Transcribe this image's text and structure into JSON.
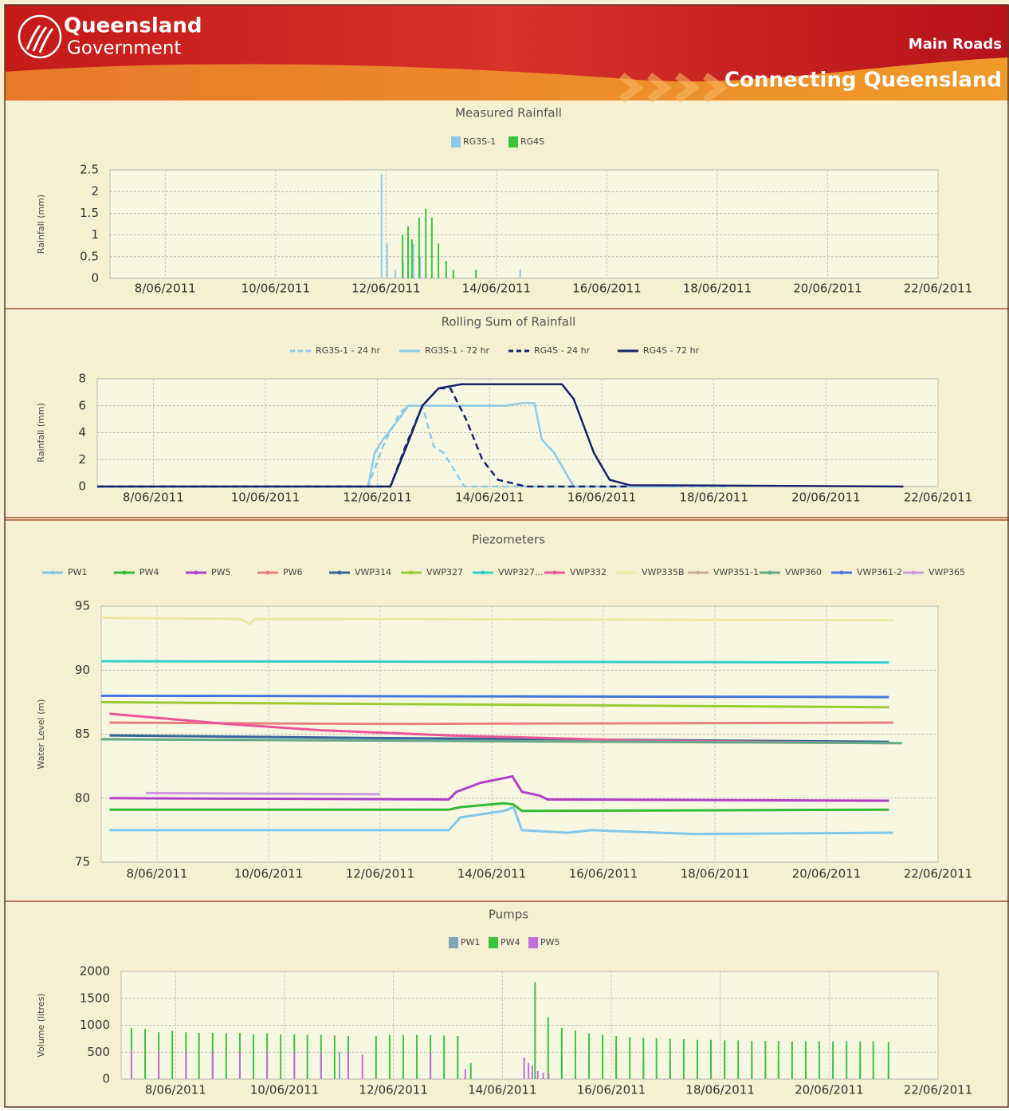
{
  "header": {
    "brand_line1": "Queensland",
    "brand_line2": "Government",
    "department": "Main Roads",
    "slogan": "Connecting Queensland"
  },
  "chart_data": [
    {
      "type": "bar",
      "title": "Measured Rainfall",
      "y_label": "Rainfall (mm)",
      "xlim": [
        7,
        22
      ],
      "xticks": [
        {
          "value": 8,
          "label": "8/06/2011"
        },
        {
          "value": 10,
          "label": "10/06/2011"
        },
        {
          "value": 12,
          "label": "12/06/2011"
        },
        {
          "value": 14,
          "label": "14/06/2011"
        },
        {
          "value": 16,
          "label": "16/06/2011"
        },
        {
          "value": 18,
          "label": "18/06/2011"
        },
        {
          "value": 20,
          "label": "20/06/2011"
        },
        {
          "value": 22,
          "label": "22/06/2011"
        }
      ],
      "ylim": [
        0,
        2.5
      ],
      "yticks": [
        0,
        0.5,
        1,
        1.5,
        2,
        2.5
      ],
      "grid": true,
      "series": [
        {
          "name": "RG3S-1",
          "color": "#8ccbe8",
          "x": [
            11.92,
            12.02,
            12.17,
            12.31,
            12.4,
            12.5,
            12.62,
            14.43
          ],
          "values": [
            2.4,
            0.8,
            0.2,
            0.4,
            0.8,
            0.8,
            0.5,
            0.2
          ]
        },
        {
          "name": "RG4S",
          "color": "#3cc43c",
          "x": [
            12.3,
            12.4,
            12.47,
            12.6,
            12.72,
            12.83,
            12.95,
            13.09,
            13.22,
            13.63
          ],
          "values": [
            1.0,
            1.2,
            0.9,
            1.4,
            1.6,
            1.4,
            0.8,
            0.4,
            0.2,
            0.2
          ]
        }
      ]
    },
    {
      "type": "line",
      "title": "Rolling Sum of Rainfall",
      "y_label": "Rainfall (mm)",
      "xlim": [
        7,
        22
      ],
      "xticks": [
        {
          "value": 8,
          "label": "8/06/2011"
        },
        {
          "value": 10,
          "label": "10/06/2011"
        },
        {
          "value": 12,
          "label": "12/06/2011"
        },
        {
          "value": 14,
          "label": "14/06/2011"
        },
        {
          "value": 16,
          "label": "16/06/2011"
        },
        {
          "value": 18,
          "label": "18/06/2011"
        },
        {
          "value": 20,
          "label": "20/06/2011"
        },
        {
          "value": 22,
          "label": "22/06/2011"
        }
      ],
      "ylim": [
        0,
        8
      ],
      "yticks": [
        0,
        2,
        4,
        6,
        8
      ],
      "grid": true,
      "series": [
        {
          "name": "RG3S-1 - 24 hr",
          "color": "#8ccbe8",
          "dashed": true,
          "x": [
            7,
            11.83,
            12.1,
            12.4,
            12.55,
            12.8,
            13.0,
            13.18,
            13.55,
            18.3
          ],
          "values": [
            0,
            0,
            3,
            5.5,
            6,
            6,
            3,
            2.5,
            0,
            0
          ]
        },
        {
          "name": "RG3S-1 - 72 hr",
          "color": "#8ccbe8",
          "dashed": false,
          "x": [
            7,
            11.83,
            11.95,
            12.1,
            12.38,
            12.55,
            14.3,
            14.58,
            14.8,
            14.93,
            15.15,
            15.5,
            17.35
          ],
          "values": [
            0,
            0,
            2.5,
            3.5,
            5,
            6,
            6,
            6.2,
            6.2,
            3.5,
            2.5,
            0,
            0
          ]
        },
        {
          "name": "RG4S - 24 hr",
          "color": "#17246a",
          "dashed": true,
          "x": [
            7,
            12.23,
            12.5,
            12.8,
            13.09,
            13.3,
            13.58,
            13.87,
            14.15,
            14.65,
            16.5
          ],
          "values": [
            0,
            0,
            3,
            6,
            7.3,
            7.3,
            5,
            2,
            0.5,
            0,
            0
          ]
        },
        {
          "name": "RG4S - 72 hr",
          "color": "#17246a",
          "dashed": false,
          "x": [
            7,
            12.23,
            12.52,
            12.8,
            13.09,
            13.5,
            15.29,
            15.5,
            15.86,
            16.14,
            16.5,
            21.38
          ],
          "values": [
            0,
            0,
            3,
            6,
            7.3,
            7.6,
            7.6,
            6.5,
            2.5,
            0.5,
            0.1,
            0
          ]
        }
      ]
    },
    {
      "type": "line",
      "title": "Piezometers",
      "y_label": "Water Level (m)",
      "xlim": [
        7,
        22
      ],
      "xticks": [
        {
          "value": 8,
          "label": "8/06/2011"
        },
        {
          "value": 10,
          "label": "10/06/2011"
        },
        {
          "value": 12,
          "label": "12/06/2011"
        },
        {
          "value": 14,
          "label": "14/06/2011"
        },
        {
          "value": 16,
          "label": "16/06/2011"
        },
        {
          "value": 18,
          "label": "18/06/2011"
        },
        {
          "value": 20,
          "label": "20/06/2011"
        },
        {
          "value": 22,
          "label": "22/06/2011"
        }
      ],
      "ylim": [
        75,
        95
      ],
      "yticks": [
        75,
        80,
        85,
        90,
        95
      ],
      "grid": true,
      "series": [
        {
          "name": "PW1",
          "color": "#80c8ea",
          "x": [
            7.15,
            13.23,
            13.44,
            14.22,
            14.39,
            14.54,
            15.36,
            15.79,
            17.64,
            21.19
          ],
          "values": [
            77.5,
            77.5,
            78.5,
            79.0,
            79.3,
            77.5,
            77.3,
            77.5,
            77.2,
            77.3
          ]
        },
        {
          "name": "PW4",
          "color": "#33bb33",
          "x": [
            7.15,
            13.23,
            13.44,
            14.22,
            14.39,
            14.54,
            21.12
          ],
          "values": [
            79.1,
            79.1,
            79.3,
            79.6,
            79.5,
            79.0,
            79.1
          ]
        },
        {
          "name": "PW5",
          "color": "#b040c8",
          "x": [
            7.15,
            13.23,
            13.37,
            13.8,
            14.37,
            14.54,
            14.86,
            15.0,
            21.12
          ],
          "values": [
            80.0,
            79.9,
            80.5,
            81.2,
            81.7,
            80.5,
            80.2,
            79.9,
            79.8
          ]
        },
        {
          "name": "PW6",
          "color": "#e88080",
          "x": [
            7.15,
            12,
            21.2
          ],
          "values": [
            85.9,
            85.8,
            85.9
          ]
        },
        {
          "name": "VWP314",
          "color": "#336699",
          "x": [
            7.15,
            11.9,
            21.12
          ],
          "values": [
            84.9,
            84.7,
            84.4
          ]
        },
        {
          "name": "VWP327",
          "color": "#99cc33",
          "x": [
            7.0,
            21.12
          ],
          "values": [
            87.5,
            87.1
          ]
        },
        {
          "name": "VWP327...",
          "color": "#33d0c8",
          "x": [
            7.0,
            21.12
          ],
          "values": [
            90.7,
            90.6
          ]
        },
        {
          "name": "VWP332",
          "color": "#ee5599",
          "x": [
            7.15,
            9.25,
            10.95,
            13.23,
            16.6,
            21.12
          ],
          "values": [
            86.6,
            85.8,
            85.3,
            84.9,
            84.5,
            84.3
          ]
        },
        {
          "name": "VWP335B",
          "color": "#ecec9e",
          "x": [
            7.0,
            9.5,
            9.67,
            9.75,
            21.2
          ],
          "values": [
            94.1,
            94.0,
            93.6,
            94.0,
            93.9
          ]
        },
        {
          "name": "VWP351-1",
          "color": "#ccaa99",
          "x": [
            7.0,
            21.2
          ],
          "values": [
            84.6,
            84.3
          ]
        },
        {
          "name": "VWP360",
          "color": "#66aa88",
          "x": [
            7.0,
            21.35
          ],
          "values": [
            84.6,
            84.3
          ]
        },
        {
          "name": "VWP361-2",
          "color": "#4477dd",
          "x": [
            7.0,
            21.12
          ],
          "values": [
            88.0,
            87.9
          ]
        },
        {
          "name": "VWP365",
          "color": "#cc99dd",
          "x": [
            7.8,
            11.99
          ],
          "values": [
            80.4,
            80.3
          ]
        }
      ]
    },
    {
      "type": "bar",
      "title": "Pumps",
      "y_label": "Volume (litres)",
      "xlim": [
        7,
        22
      ],
      "xticks": [
        {
          "value": 8,
          "label": "8/06/2011"
        },
        {
          "value": 10,
          "label": "10/06/2011"
        },
        {
          "value": 12,
          "label": "12/06/2011"
        },
        {
          "value": 14,
          "label": "14/06/2011"
        },
        {
          "value": 16,
          "label": "16/06/2011"
        },
        {
          "value": 18,
          "label": "18/06/2011"
        },
        {
          "value": 20,
          "label": "20/06/2011"
        },
        {
          "value": 22,
          "label": "22/06/2011"
        }
      ],
      "ylim": [
        0,
        2000
      ],
      "yticks": [
        0,
        500,
        1000,
        1500,
        2000
      ],
      "grid": true,
      "series": [
        {
          "name": "PW1",
          "color": "#7fa8b8",
          "x": [
            8.68,
            9.18,
            11.01,
            15.09,
            15.59,
            16.09,
            16.59,
            17.08,
            17.58,
            18.08,
            18.58,
            19.07,
            19.57,
            20.07,
            20.57,
            21.09
          ],
          "values": [
            550,
            520,
            500,
            450,
            400,
            400,
            380,
            350,
            350,
            350,
            350,
            330,
            330,
            330,
            320,
            300
          ]
        },
        {
          "name": "PW4",
          "color": "#3cc43c",
          "x": [
            7.19,
            7.44,
            7.69,
            7.94,
            8.19,
            8.43,
            8.68,
            8.93,
            9.18,
            9.43,
            9.68,
            9.93,
            10.18,
            10.42,
            10.67,
            10.92,
            11.17,
            11.68,
            11.93,
            12.18,
            12.43,
            12.68,
            12.93,
            13.18,
            13.42,
            14.6,
            14.84,
            15.09,
            15.34,
            15.59,
            15.84,
            16.09,
            16.34,
            16.59,
            16.83,
            17.08,
            17.33,
            17.58,
            17.83,
            18.08,
            18.33,
            18.58,
            18.83,
            19.07,
            19.32,
            19.57,
            19.82,
            20.07,
            20.32,
            20.57,
            20.81,
            21.09
          ],
          "values": [
            950,
            930,
            870,
            900,
            870,
            860,
            860,
            850,
            860,
            830,
            850,
            830,
            830,
            820,
            820,
            810,
            800,
            800,
            820,
            820,
            820,
            820,
            810,
            800,
            300,
            1800,
            1150,
            950,
            900,
            850,
            820,
            800,
            780,
            770,
            760,
            750,
            740,
            730,
            730,
            720,
            720,
            710,
            710,
            710,
            700,
            700,
            700,
            700,
            700,
            700,
            700,
            690
          ]
        },
        {
          "name": "PW5",
          "color": "#c070d8",
          "x": [
            7.19,
            7.69,
            8.19,
            8.68,
            9.18,
            9.68,
            10.18,
            10.67,
            11.17,
            11.43,
            12.68,
            13.32,
            14.4,
            14.48,
            14.55,
            14.65,
            14.75,
            14.85
          ],
          "values": [
            530,
            520,
            520,
            510,
            510,
            520,
            510,
            500,
            500,
            450,
            500,
            180,
            400,
            300,
            250,
            150,
            120,
            100
          ]
        }
      ]
    }
  ]
}
